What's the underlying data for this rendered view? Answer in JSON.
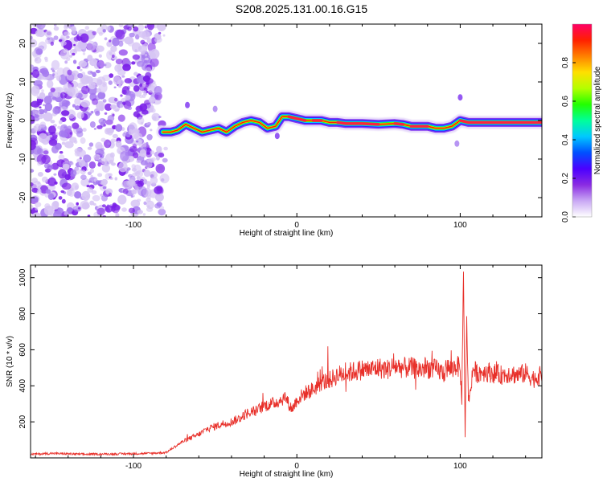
{
  "title": "S208.2025.131.00.16.G15",
  "colors": {
    "snr_line": "#e8302a",
    "frame": "#000000",
    "noise_purple": "#7a1ee8",
    "noise_light": "#d6c4f4"
  },
  "chart_data": [
    {
      "type": "heatmap",
      "name": "spectrogram",
      "xlabel": "Height of straight line (km)",
      "ylabel": "Frequency (Hz)",
      "xlim": [
        -163,
        150
      ],
      "ylim": [
        -25,
        25
      ],
      "x_ticks": [
        -100,
        0,
        100
      ],
      "y_ticks": [
        -20,
        -10,
        0,
        10,
        20
      ],
      "grid": false,
      "noise_region_x": [
        -163,
        -80
      ],
      "ridge": {
        "x": [
          -82,
          -77,
          -73,
          -68,
          -63,
          -58,
          -53,
          -48,
          -43,
          -38,
          -33,
          -28,
          -23,
          -18,
          -13,
          -9,
          -5,
          0,
          5,
          10,
          15,
          20,
          25,
          30,
          40,
          50,
          60,
          65,
          70,
          75,
          80,
          85,
          90,
          95,
          100,
          105,
          110,
          120,
          130,
          140,
          150
        ],
        "y": [
          -3,
          -3,
          -2.5,
          -1,
          -2,
          -3,
          -2.5,
          -2,
          -3,
          -1.5,
          -0.5,
          0,
          -0.5,
          -2,
          -1.5,
          1,
          1,
          0.5,
          0,
          0,
          0,
          -0.5,
          -0.5,
          -0.8,
          -0.8,
          -1,
          -0.8,
          -1,
          -1.5,
          -1.5,
          -1.5,
          -2,
          -2,
          -1.5,
          0,
          -0.5,
          -0.5,
          -0.5,
          -0.5,
          -0.5,
          -0.5
        ]
      },
      "colorbar": {
        "label": "Normalized spectral amplitude",
        "range": [
          0,
          1
        ],
        "ticks": [
          "0.0",
          "0.2",
          "0.4",
          "0.6",
          "0.8"
        ],
        "tick_values": [
          0,
          0.2,
          0.4,
          0.6,
          0.8
        ],
        "colors": [
          "#ffffff",
          "#c9a8f4",
          "#8a2be2",
          "#4b00ff",
          "#0050ff",
          "#00c8ff",
          "#00ff9a",
          "#22ff00",
          "#b4ff00",
          "#ffe000",
          "#ff8000",
          "#ff2000",
          "#ff0066"
        ]
      }
    },
    {
      "type": "line",
      "name": "snr",
      "xlabel": "Height of straight line (km)",
      "ylabel": "SNR (10 * v/v)",
      "xlim": [
        -163,
        150
      ],
      "ylim": [
        0,
        1070
      ],
      "x_ticks": [
        -100,
        0,
        100
      ],
      "y_ticks": [
        200,
        400,
        600,
        800,
        1000
      ],
      "grid": false,
      "x": [
        -163,
        -150,
        -130,
        -110,
        -90,
        -80,
        -75,
        -70,
        -65,
        -60,
        -55,
        -50,
        -45,
        -40,
        -35,
        -30,
        -25,
        -20,
        -15,
        -10,
        -7,
        -5,
        -3,
        0,
        5,
        10,
        15,
        20,
        25,
        30,
        35,
        40,
        45,
        50,
        55,
        60,
        65,
        70,
        75,
        80,
        85,
        88,
        90,
        92,
        95,
        98,
        100,
        101,
        102,
        103,
        104,
        105,
        108,
        110,
        115,
        120,
        125,
        130,
        135,
        140,
        145,
        150
      ],
      "y": [
        20,
        25,
        20,
        22,
        25,
        30,
        60,
        90,
        110,
        130,
        160,
        175,
        190,
        200,
        220,
        250,
        260,
        290,
        300,
        320,
        340,
        300,
        270,
        320,
        360,
        380,
        420,
        430,
        460,
        470,
        480,
        490,
        490,
        500,
        490,
        510,
        500,
        500,
        490,
        500,
        490,
        480,
        470,
        500,
        490,
        520,
        480,
        320,
        1070,
        100,
        800,
        300,
        500,
        470,
        480,
        470,
        460,
        470,
        460,
        470,
        440,
        460
      ]
    }
  ]
}
